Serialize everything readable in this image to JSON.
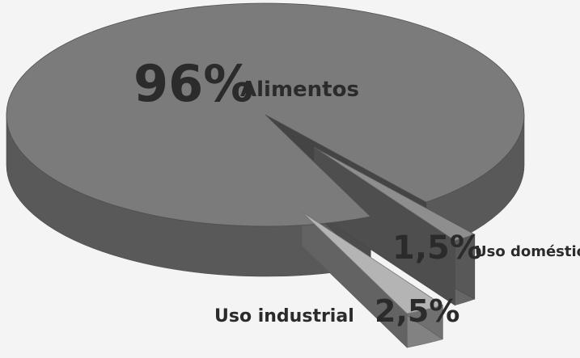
{
  "chart_data": {
    "type": "pie",
    "style": "3d-exploded",
    "slices": [
      {
        "label": "Alimentos",
        "value": 96,
        "value_label": "96%",
        "color": "#7b7b7b"
      },
      {
        "label": "Uso doméstico",
        "value": 1.5,
        "value_label": "1,5%",
        "color": "#8e8e8e"
      },
      {
        "label": "Uso industrial",
        "value": 2.5,
        "value_label": "2,5%",
        "color": "#b4b4b4"
      }
    ],
    "title": "",
    "legend": "none"
  }
}
